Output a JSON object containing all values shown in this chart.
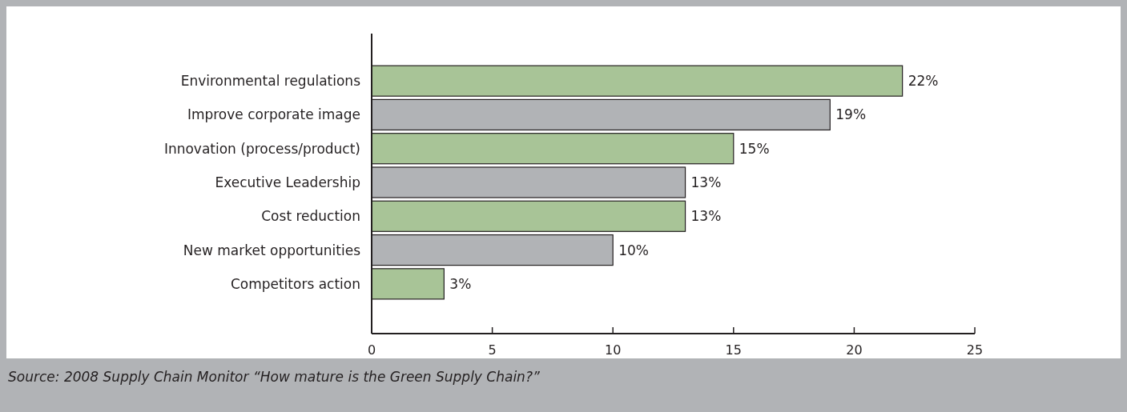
{
  "chart_data": {
    "type": "bar",
    "orientation": "horizontal",
    "categories": [
      "Environmental regulations",
      "Improve corporate image",
      "Innovation (process/product)",
      "Executive Leadership",
      "Cost reduction",
      "New market opportunities",
      "Competitors action"
    ],
    "values": [
      22,
      19,
      15,
      13,
      13,
      10,
      3
    ],
    "colors": [
      "#a8c497",
      "#b1b3b6",
      "#a8c497",
      "#b1b3b6",
      "#a8c497",
      "#b1b3b6",
      "#a8c497"
    ],
    "value_labels": [
      "22%",
      "19%",
      "15%",
      "13%",
      "13%",
      "10%",
      "3%"
    ],
    "xlim": [
      0,
      25
    ],
    "xticks": [
      0,
      5,
      10,
      15,
      20,
      25
    ],
    "grid": false,
    "annotations": [
      "Source: 2008 Supply Chain Monitor “How mature is the Green Supply Chain?”"
    ]
  }
}
